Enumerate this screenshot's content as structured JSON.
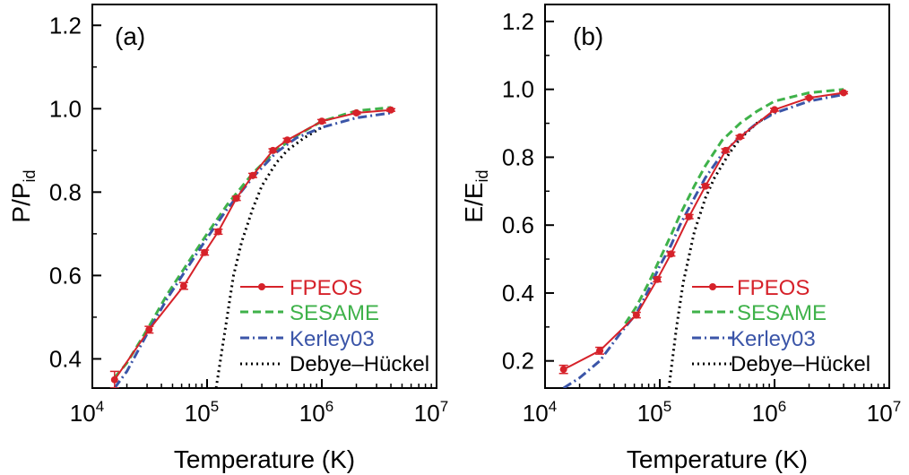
{
  "chart_data": [
    {
      "type": "line",
      "panel_label": "(a)",
      "xlabel": "Temperature (K)",
      "ylabel": {
        "base": "P/P",
        "sub": "id"
      },
      "xscale": "log",
      "xlim": [
        10000,
        10000000
      ],
      "ylim": [
        0.33,
        1.25
      ],
      "x_ticks": [
        {
          "base": "10",
          "exp": "4",
          "value": 10000
        },
        {
          "base": "10",
          "exp": "5",
          "value": 100000
        },
        {
          "base": "10",
          "exp": "6",
          "value": 1000000
        },
        {
          "base": "10",
          "exp": "7",
          "value": 10000000
        }
      ],
      "y_ticks": [
        "0.4",
        "0.6",
        "0.8",
        "1.0",
        "1.2"
      ],
      "legend_position": "lower-right",
      "series": [
        {
          "name": "FPEOS",
          "style": "solid-markers",
          "color": "#d6222a",
          "x": [
            15625,
            31250,
            62500,
            95000,
            125000,
            180000,
            250000,
            375000,
            500000,
            1000000,
            2000000,
            4000000
          ],
          "y": [
            0.35,
            0.47,
            0.575,
            0.655,
            0.705,
            0.785,
            0.84,
            0.9,
            0.925,
            0.97,
            0.99,
            0.997
          ],
          "err": [
            0.02,
            0.008,
            0.008,
            0.006,
            0.006,
            0.005,
            0.005,
            0.004,
            0.004,
            0.004,
            0.003,
            0.003
          ]
        },
        {
          "name": "SESAME",
          "style": "dashed",
          "color": "#3fb24a",
          "x": [
            15625,
            20000,
            30000,
            45000,
            62500,
            100000,
            150000,
            250000,
            400000,
            600000,
            1000000,
            2000000,
            4000000
          ],
          "y": [
            0.355,
            0.39,
            0.47,
            0.555,
            0.615,
            0.7,
            0.77,
            0.845,
            0.9,
            0.935,
            0.97,
            0.995,
            1.003
          ]
        },
        {
          "name": "Kerley03",
          "style": "dashdot",
          "color": "#3b55a8",
          "x": [
            15625,
            20000,
            30000,
            45000,
            62500,
            100000,
            150000,
            250000,
            400000,
            600000,
            1000000,
            2000000,
            4000000
          ],
          "y": [
            0.33,
            0.37,
            0.46,
            0.545,
            0.605,
            0.69,
            0.76,
            0.835,
            0.895,
            0.93,
            0.955,
            0.978,
            0.99
          ]
        },
        {
          "name": "Debye–Hückel",
          "style": "dotted",
          "color": "#000000",
          "x": [
            120000,
            140000,
            170000,
            200000,
            250000,
            300000,
            400000,
            500000,
            700000,
            1000000
          ],
          "y": [
            0.33,
            0.45,
            0.6,
            0.68,
            0.76,
            0.815,
            0.87,
            0.9,
            0.93,
            0.955
          ]
        }
      ]
    },
    {
      "type": "line",
      "panel_label": "(b)",
      "xlabel": "Temperature (K)",
      "ylabel": {
        "base": "E/E",
        "sub": "id"
      },
      "xscale": "log",
      "xlim": [
        10000,
        10000000
      ],
      "ylim": [
        0.12,
        1.25
      ],
      "x_ticks": [
        {
          "base": "10",
          "exp": "4",
          "value": 10000
        },
        {
          "base": "10",
          "exp": "5",
          "value": 100000
        },
        {
          "base": "10",
          "exp": "6",
          "value": 1000000
        },
        {
          "base": "10",
          "exp": "7",
          "value": 10000000
        }
      ],
      "y_ticks": [
        "0.2",
        "0.4",
        "0.6",
        "0.8",
        "1.0",
        "1.2"
      ],
      "legend_position": "lower-right",
      "series": [
        {
          "name": "FPEOS",
          "style": "solid-markers",
          "color": "#d6222a",
          "x": [
            14500,
            30000,
            62500,
            95000,
            125000,
            180000,
            250000,
            375000,
            500000,
            1000000,
            2000000,
            4000000
          ],
          "y": [
            0.175,
            0.23,
            0.335,
            0.44,
            0.515,
            0.625,
            0.715,
            0.82,
            0.86,
            0.94,
            0.975,
            0.99
          ],
          "err": [
            0.012,
            0.01,
            0.008,
            0.007,
            0.006,
            0.006,
            0.005,
            0.005,
            0.004,
            0.004,
            0.003,
            0.003
          ]
        },
        {
          "name": "SESAME",
          "style": "dashed",
          "color": "#3fb24a",
          "x": [
            50000,
            62500,
            80000,
            100000,
            125000,
            150000,
            200000,
            250000,
            350000,
            500000,
            700000,
            1000000,
            2000000,
            4000000
          ],
          "y": [
            0.31,
            0.36,
            0.43,
            0.5,
            0.57,
            0.63,
            0.715,
            0.775,
            0.85,
            0.9,
            0.935,
            0.965,
            0.99,
            1.0
          ]
        },
        {
          "name": "Kerley03",
          "style": "dashdot",
          "color": "#3b55a8",
          "x": [
            14500,
            20000,
            30000,
            45000,
            62500,
            80000,
            100000,
            125000,
            150000,
            200000,
            250000,
            350000,
            500000,
            700000,
            1000000,
            2000000,
            4000000
          ],
          "y": [
            0.12,
            0.15,
            0.2,
            0.28,
            0.34,
            0.41,
            0.48,
            0.54,
            0.6,
            0.68,
            0.74,
            0.81,
            0.86,
            0.9,
            0.93,
            0.965,
            0.985
          ]
        },
        {
          "name": "Debye–Hückel",
          "style": "dotted",
          "color": "#000000",
          "x": [
            120000,
            140000,
            160000,
            200000,
            250000,
            300000,
            400000,
            500000,
            700000,
            1000000
          ],
          "y": [
            0.12,
            0.3,
            0.43,
            0.58,
            0.68,
            0.74,
            0.81,
            0.855,
            0.9,
            0.935
          ]
        }
      ]
    }
  ]
}
